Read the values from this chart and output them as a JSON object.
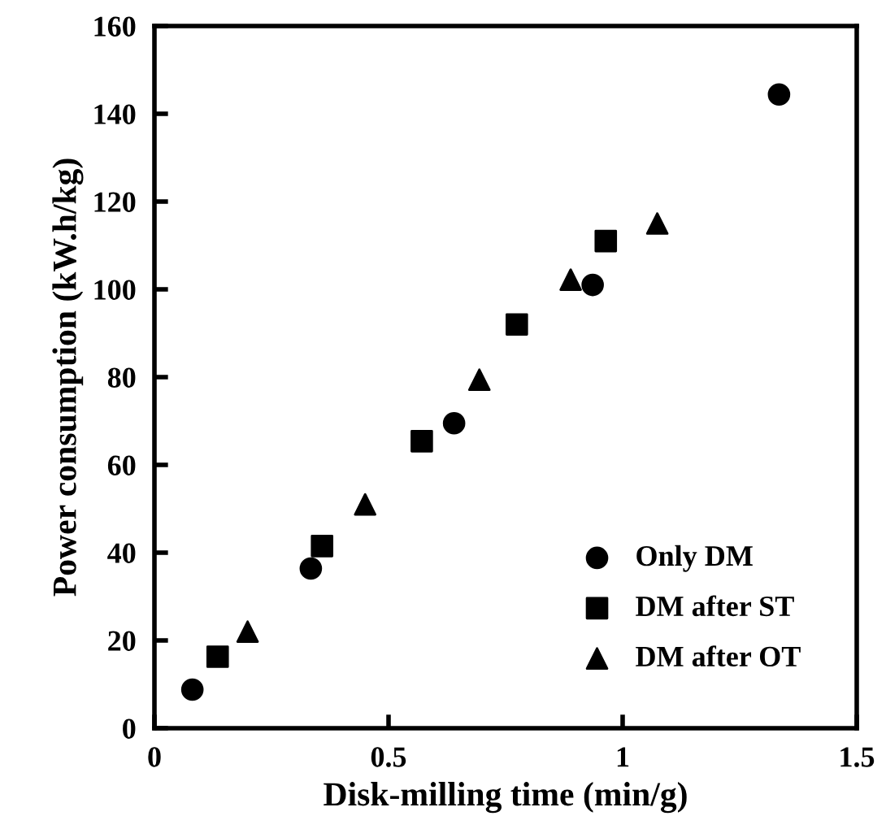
{
  "chart_data": {
    "type": "scatter",
    "xlabel": "Disk-milling time (min/g)",
    "ylabel": "Power consumption (kW.h/kg)",
    "xlim": [
      0,
      1.5
    ],
    "xticks": [
      0,
      0.5,
      1,
      1.5
    ],
    "ylim": [
      0,
      160
    ],
    "yticks": [
      0,
      20,
      40,
      60,
      80,
      100,
      120,
      140,
      160
    ],
    "grid": false,
    "legend": "bottom right",
    "series": [
      {
        "name": "Only DM",
        "color": "#000000",
        "marker": "circle",
        "x": [
          0.081,
          0.334,
          0.64,
          0.936,
          1.334
        ],
        "values": [
          8.8,
          36.4,
          69.5,
          101,
          144.4
        ]
      },
      {
        "name": "DM after ST",
        "color": "#000000",
        "marker": "square",
        "x": [
          0.135,
          0.358,
          0.571,
          0.774,
          0.964
        ],
        "values": [
          16.3,
          41.5,
          65.4,
          92,
          111
        ]
      },
      {
        "name": "DM after OT",
        "color": "#000000",
        "marker": "triangle",
        "x": [
          0.199,
          0.45,
          0.694,
          0.889,
          1.074
        ],
        "values": [
          22,
          51,
          79.4,
          102.2,
          115
        ]
      }
    ]
  }
}
